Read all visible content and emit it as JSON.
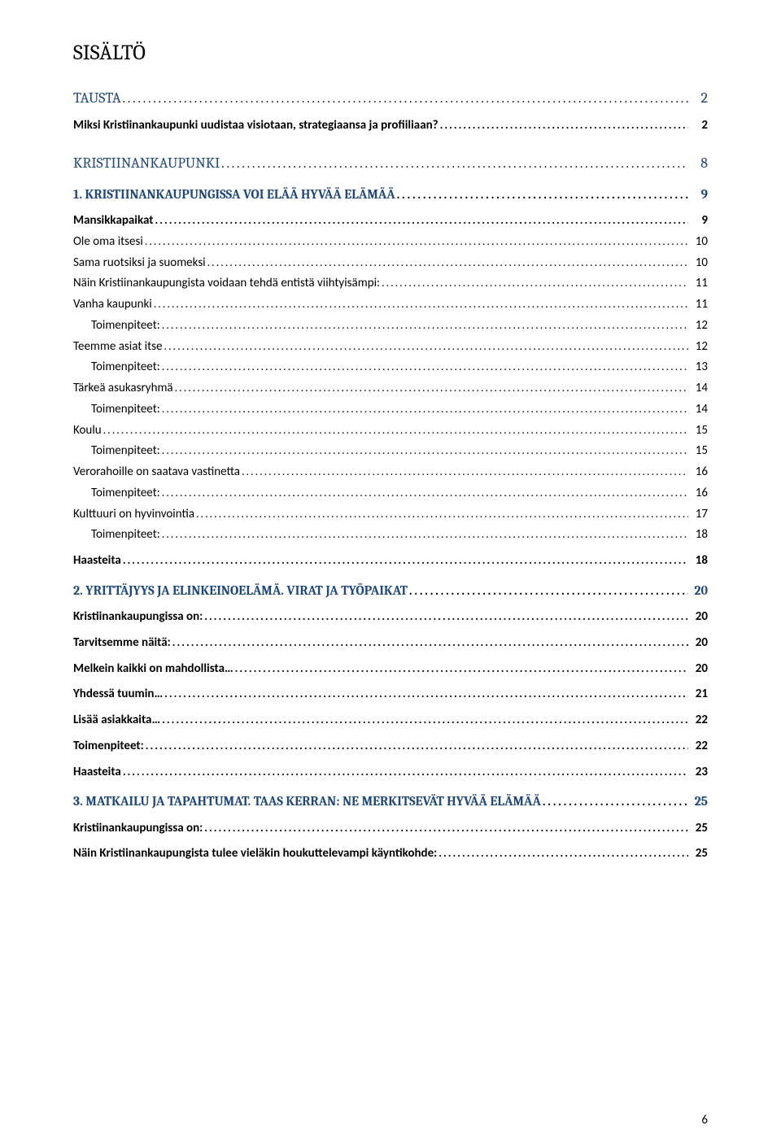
{
  "title": "SISÄLTÖ",
  "pageNumber": "6",
  "colors": {
    "heading": "#1f497d",
    "text": "#000000",
    "background": "#ffffff"
  },
  "fonts": {
    "heading_family": "Cambria",
    "body_family": "Calibri",
    "title_size_pt": 20,
    "lvl0_size_pt": 14,
    "lvl1_size_pt": 13,
    "body_size_pt": 11
  },
  "toc": [
    {
      "level": 0,
      "label": "TAUSTA",
      "page": "2"
    },
    {
      "level": 2,
      "label": "Miksi Kristiinankaupunki uudistaa visiotaan, strategiaansa ja profiiliaan?",
      "page": "2"
    },
    {
      "level": 0,
      "label": "KRISTIINANKAUPUNKI",
      "page": "8"
    },
    {
      "level": 1,
      "label": "1. KRISTIINANKAUPUNGISSA VOI ELÄÄ HYVÄÄ ELÄMÄÄ",
      "page": "9"
    },
    {
      "level": 2,
      "label": "Mansikkapaikat",
      "page": "9"
    },
    {
      "level": 3,
      "label": "Ole oma itsesi",
      "page": "10"
    },
    {
      "level": 3,
      "label": "Sama ruotsiksi ja suomeksi",
      "page": "10"
    },
    {
      "level": 3,
      "label": "Näin Kristiinankaupungista voidaan tehdä entistä viihtyisämpi:",
      "page": "11"
    },
    {
      "level": 3,
      "label": "Vanha kaupunki",
      "page": "11"
    },
    {
      "level": 4,
      "label": "Toimenpiteet:",
      "page": "12"
    },
    {
      "level": 3,
      "label": "Teemme asiat itse",
      "page": "12"
    },
    {
      "level": 4,
      "label": "Toimenpiteet:",
      "page": "13"
    },
    {
      "level": 3,
      "label": "Tärkeä asukasryhmä",
      "page": "14"
    },
    {
      "level": 4,
      "label": "Toimenpiteet:",
      "page": "14"
    },
    {
      "level": 3,
      "label": "Koulu",
      "page": "15"
    },
    {
      "level": 4,
      "label": "Toimenpiteet:",
      "page": "15"
    },
    {
      "level": 3,
      "label": "Verorahoille on saatava vastinetta",
      "page": "16"
    },
    {
      "level": 4,
      "label": "Toimenpiteet:",
      "page": "16"
    },
    {
      "level": 3,
      "label": "Kulttuuri on hyvinvointia",
      "page": "17"
    },
    {
      "level": 4,
      "label": "Toimenpiteet:",
      "page": "18"
    },
    {
      "level": 2,
      "label": "Haasteita",
      "page": "18"
    },
    {
      "level": 1,
      "label": "2. YRITTÄJYYS JA ELINKEINOELÄMÄ. VIRAT JA TYÖPAIKAT",
      "page": "20"
    },
    {
      "level": 2,
      "label": "Kristiinankaupungissa on:",
      "page": "20"
    },
    {
      "level": 2,
      "label": "Tarvitsemme näitä:",
      "page": "20"
    },
    {
      "level": 2,
      "label": "Melkein kaikki on mahdollista…",
      "page": "20"
    },
    {
      "level": 2,
      "label": "Yhdessä tuumin…",
      "page": "21"
    },
    {
      "level": 2,
      "label": "Lisää asiakkaita…",
      "page": "22"
    },
    {
      "level": 2,
      "label": "Toimenpiteet:",
      "page": "22"
    },
    {
      "level": 2,
      "label": "Haasteita",
      "page": "23"
    },
    {
      "level": 1,
      "label": "3. MATKAILU JA TAPAHTUMAT. TAAS KERRAN: NE MERKITSEVÄT HYVÄÄ ELÄMÄÄ",
      "page": "25"
    },
    {
      "level": 2,
      "label": "Kristiinankaupungissa on:",
      "page": "25"
    },
    {
      "level": 2,
      "label": "Näin Kristiinankaupungista tulee vieläkin houkuttelevampi käyntikohde:",
      "page": "25"
    }
  ]
}
